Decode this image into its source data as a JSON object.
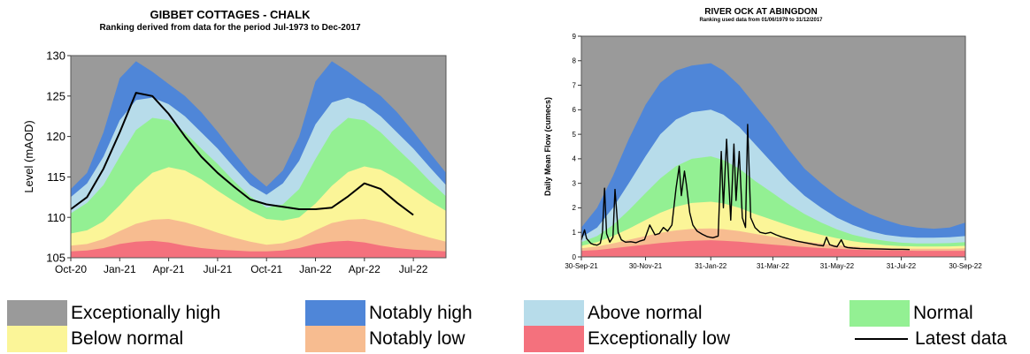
{
  "colors": {
    "exceptionally_high": "#9a9a9a",
    "notably_high": "#4f86d8",
    "above_normal": "#b7dcea",
    "normal": "#93f093",
    "below_normal": "#fbf598",
    "notably_low": "#f7bc90",
    "exceptionally_low": "#f4717d",
    "latest": "#000000"
  },
  "chart_data": [
    {
      "type": "area",
      "title": "GIBBET COTTAGES - CHALK",
      "subtitle": "Ranking derived from data for the period Jul-1973 to Dec-2017",
      "xlabel": "",
      "ylabel": "Level (mAOD)",
      "ylim": [
        105,
        130
      ],
      "yticks": [
        105,
        110,
        115,
        120,
        125,
        130
      ],
      "xlim": [
        0,
        23
      ],
      "xticks": [
        {
          "x": 0,
          "label": "Oct-20"
        },
        {
          "x": 3,
          "label": "Jan-21"
        },
        {
          "x": 6,
          "label": "Apr-21"
        },
        {
          "x": 9,
          "label": "Jul-21"
        },
        {
          "x": 12,
          "label": "Oct-21"
        },
        {
          "x": 15,
          "label": "Jan-22"
        },
        {
          "x": 18,
          "label": "Apr-22"
        },
        {
          "x": 21,
          "label": "Jul-22"
        }
      ],
      "x": [
        0,
        1,
        2,
        3,
        4,
        5,
        6,
        7,
        8,
        9,
        10,
        11,
        12,
        13,
        14,
        15,
        16,
        17,
        18,
        19,
        20,
        21,
        22,
        23
      ],
      "bands": {
        "floor": 105,
        "exceptionally_low": [
          105.8,
          105.9,
          106.2,
          106.7,
          107.0,
          107.1,
          106.9,
          106.5,
          106.2,
          106.0,
          105.9,
          105.8,
          105.8,
          105.9,
          106.2,
          106.7,
          107.0,
          107.1,
          106.9,
          106.5,
          106.2,
          106.0,
          105.9,
          105.8
        ],
        "notably_low": [
          106.5,
          106.7,
          107.3,
          108.3,
          109.2,
          109.7,
          109.8,
          109.4,
          108.8,
          108.1,
          107.5,
          107.0,
          106.6,
          106.8,
          107.4,
          108.4,
          109.3,
          109.7,
          109.8,
          109.4,
          108.8,
          108.1,
          107.5,
          107.0
        ],
        "below_normal": [
          108.0,
          108.4,
          109.5,
          111.5,
          113.7,
          115.5,
          116.2,
          115.8,
          114.7,
          113.3,
          112.0,
          110.8,
          109.8,
          109.6,
          110.0,
          111.7,
          113.9,
          115.6,
          116.3,
          115.9,
          114.8,
          113.4,
          112.0,
          110.8
        ],
        "normal": [
          110.5,
          111.8,
          114.0,
          117.5,
          120.8,
          122.3,
          122.0,
          120.5,
          118.5,
          116.6,
          114.5,
          112.6,
          111.2,
          111.6,
          113.5,
          117.2,
          120.6,
          122.3,
          122.0,
          120.5,
          118.5,
          116.6,
          114.5,
          112.6
        ],
        "above_normal": [
          112.5,
          114.2,
          117.5,
          122.0,
          124.5,
          124.8,
          124.0,
          122.5,
          120.5,
          118.5,
          116.2,
          114.0,
          112.8,
          114.2,
          117.0,
          121.5,
          124.2,
          124.8,
          124.0,
          122.5,
          120.5,
          118.5,
          116.2,
          114.0
        ],
        "notably_high": [
          113.5,
          115.5,
          120.5,
          127.2,
          129.3,
          128.0,
          126.5,
          125.0,
          123.0,
          120.6,
          118.0,
          115.5,
          113.8,
          115.8,
          120.0,
          126.8,
          129.3,
          128.0,
          126.5,
          125.0,
          123.0,
          120.6,
          118.0,
          115.5
        ]
      },
      "latest_x": [
        0,
        1,
        2,
        3,
        4,
        5,
        6,
        7,
        8,
        9,
        10,
        11,
        12,
        13,
        14,
        15,
        16,
        17,
        18,
        19,
        20,
        21
      ],
      "latest_y": [
        111.0,
        112.5,
        116.0,
        120.5,
        125.4,
        125.0,
        122.8,
        120.0,
        117.5,
        115.5,
        113.8,
        112.2,
        111.6,
        111.3,
        111.0,
        111.0,
        111.2,
        112.6,
        114.2,
        113.5,
        111.8,
        110.3
      ]
    },
    {
      "type": "area",
      "title": "RIVER OCK AT ABINGDON",
      "subtitle": "Ranking used data from 01/06/1979 to 31/12/2017",
      "xlabel": "",
      "ylabel": "Daily Mean Flow (cumecs)",
      "ylim": [
        0,
        9
      ],
      "yticks": [
        0,
        1,
        2,
        3,
        4,
        5,
        6,
        7,
        8,
        9
      ],
      "xlim": [
        0,
        365
      ],
      "xticks": [
        {
          "x": 0,
          "label": "30-Sep-21"
        },
        {
          "x": 61,
          "label": "30-Nov-21"
        },
        {
          "x": 123,
          "label": "31-Jan-22"
        },
        {
          "x": 182,
          "label": "31-Mar-22"
        },
        {
          "x": 243,
          "label": "31-May-22"
        },
        {
          "x": 304,
          "label": "31-Jul-22"
        },
        {
          "x": 365,
          "label": "30-Sep-22"
        }
      ],
      "x": [
        0,
        15,
        30,
        45,
        61,
        75,
        90,
        105,
        123,
        135,
        150,
        165,
        182,
        197,
        212,
        228,
        243,
        258,
        274,
        289,
        304,
        319,
        335,
        350,
        365
      ],
      "bands": {
        "floor": 0,
        "exceptionally_low": [
          0.25,
          0.28,
          0.35,
          0.42,
          0.5,
          0.57,
          0.62,
          0.66,
          0.68,
          0.66,
          0.62,
          0.56,
          0.5,
          0.45,
          0.4,
          0.36,
          0.33,
          0.3,
          0.28,
          0.27,
          0.26,
          0.25,
          0.25,
          0.25,
          0.25
        ],
        "notably_low": [
          0.35,
          0.42,
          0.55,
          0.7,
          0.85,
          0.98,
          1.08,
          1.14,
          1.16,
          1.13,
          1.05,
          0.94,
          0.82,
          0.72,
          0.62,
          0.55,
          0.48,
          0.42,
          0.38,
          0.36,
          0.34,
          0.33,
          0.33,
          0.33,
          0.35
        ],
        "below_normal": [
          0.45,
          0.6,
          0.85,
          1.15,
          1.5,
          1.8,
          2.05,
          2.2,
          2.25,
          2.18,
          2.0,
          1.75,
          1.5,
          1.28,
          1.08,
          0.9,
          0.76,
          0.64,
          0.55,
          0.48,
          0.44,
          0.42,
          0.42,
          0.43,
          0.45
        ],
        "normal": [
          0.6,
          0.85,
          1.3,
          1.9,
          2.6,
          3.2,
          3.7,
          4.0,
          4.1,
          3.95,
          3.6,
          3.1,
          2.6,
          2.15,
          1.75,
          1.4,
          1.12,
          0.9,
          0.75,
          0.65,
          0.58,
          0.55,
          0.55,
          0.56,
          0.6
        ],
        "above_normal": [
          0.8,
          1.2,
          2.0,
          3.0,
          4.1,
          5.0,
          5.6,
          5.9,
          6.0,
          5.8,
          5.3,
          4.6,
          3.8,
          3.1,
          2.5,
          2.0,
          1.6,
          1.3,
          1.05,
          0.9,
          0.82,
          0.78,
          0.78,
          0.8,
          0.85
        ],
        "notably_high": [
          1.2,
          2.0,
          3.3,
          4.8,
          6.2,
          7.1,
          7.6,
          7.8,
          7.9,
          7.6,
          7.0,
          6.2,
          5.3,
          4.4,
          3.6,
          3.0,
          2.5,
          2.1,
          1.75,
          1.5,
          1.3,
          1.2,
          1.15,
          1.2,
          1.4
        ]
      },
      "latest_x": [
        0,
        3,
        5,
        7,
        9,
        12,
        15,
        18,
        20,
        22,
        24,
        27,
        30,
        32,
        35,
        38,
        42,
        47,
        52,
        56,
        60,
        65,
        70,
        74,
        78,
        82,
        86,
        90,
        93,
        95,
        98,
        100,
        103,
        106,
        110,
        115,
        120,
        125,
        130,
        133,
        135,
        138,
        142,
        145,
        147,
        150,
        153,
        156,
        158,
        161,
        165,
        170,
        175,
        180,
        185,
        190,
        195,
        200,
        205,
        210,
        215,
        220,
        225,
        230,
        233,
        236,
        240,
        243,
        247,
        250,
        253,
        258,
        265,
        275,
        285,
        295,
        305,
        312
      ],
      "latest_y": [
        0.7,
        1.1,
        0.75,
        0.65,
        0.55,
        0.5,
        0.48,
        0.55,
        1.0,
        2.8,
        0.95,
        0.6,
        0.8,
        2.75,
        1.0,
        0.7,
        0.6,
        0.62,
        0.58,
        0.65,
        0.7,
        1.3,
        0.9,
        0.95,
        1.2,
        1.05,
        1.3,
        2.8,
        3.7,
        2.5,
        3.5,
        2.9,
        1.8,
        1.3,
        1.05,
        0.92,
        0.82,
        0.78,
        0.85,
        4.3,
        2.0,
        4.8,
        1.5,
        4.6,
        2.3,
        4.3,
        1.6,
        1.2,
        5.4,
        1.6,
        1.2,
        1.0,
        0.95,
        1.0,
        0.9,
        0.82,
        0.76,
        0.7,
        0.64,
        0.6,
        0.56,
        0.52,
        0.48,
        0.45,
        0.8,
        0.5,
        0.44,
        0.41,
        0.7,
        0.42,
        0.38,
        0.36,
        0.34,
        0.33,
        0.32,
        0.31,
        0.31,
        0.3
      ]
    }
  ],
  "legend": {
    "exceptionally_high": "Exceptionally high",
    "notably_high": "Notably high",
    "above_normal": "Above normal",
    "normal": "Normal",
    "below_normal": "Below normal",
    "notably_low": "Notably low",
    "exceptionally_low": "Exceptionally low",
    "latest": "Latest data"
  }
}
